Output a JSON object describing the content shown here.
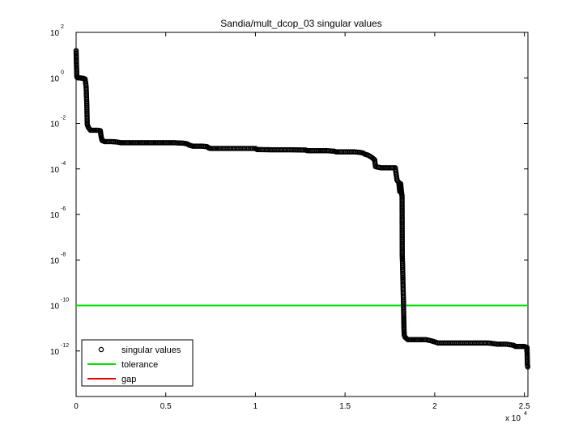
{
  "chart_data": {
    "type": "scatter",
    "title": "Sandia/mult_dcop_03 singular values",
    "xlabel": "",
    "ylabel": "",
    "x_multiplier_label": "x 10",
    "x_multiplier_exp": "4",
    "xlim": [
      0,
      25200
    ],
    "ylim_log10": [
      -14,
      2
    ],
    "y_scale": "log",
    "grid": false,
    "legend_position": "bottom-left",
    "x_ticks": [
      {
        "value": 0,
        "label": "0"
      },
      {
        "value": 5000,
        "label": "0.5"
      },
      {
        "value": 10000,
        "label": "1"
      },
      {
        "value": 15000,
        "label": "1.5"
      },
      {
        "value": 20000,
        "label": "2"
      },
      {
        "value": 25000,
        "label": "2.5"
      }
    ],
    "y_ticks": [
      {
        "exp": 2,
        "base": "10",
        "sup": "2"
      },
      {
        "exp": 0,
        "base": "10",
        "sup": "0"
      },
      {
        "exp": -2,
        "base": "10",
        "sup": "-2"
      },
      {
        "exp": -4,
        "base": "10",
        "sup": "-4"
      },
      {
        "exp": -6,
        "base": "10",
        "sup": "-6"
      },
      {
        "exp": -8,
        "base": "10",
        "sup": "-8"
      },
      {
        "exp": -10,
        "base": "10",
        "sup": "-10"
      },
      {
        "exp": -12,
        "base": "10",
        "sup": "-12"
      }
    ],
    "legend": [
      {
        "key": "singular",
        "label": "singular values",
        "symbol": "circle",
        "color": "#000000"
      },
      {
        "key": "tolerance",
        "label": "tolerance",
        "symbol": "line",
        "color": "#00e000"
      },
      {
        "key": "gap",
        "label": "gap",
        "symbol": "line",
        "color": "#e00000"
      }
    ],
    "series": [
      {
        "name": "singular values",
        "color": "#000000",
        "marker": "circle",
        "points_log10": [
          [
            0,
            1.2
          ],
          [
            20,
            0.55
          ],
          [
            40,
            0.05
          ],
          [
            60,
            0.02
          ],
          [
            100,
            0.0
          ],
          [
            200,
            0.0
          ],
          [
            300,
            -0.01
          ],
          [
            400,
            -0.02
          ],
          [
            500,
            -0.05
          ],
          [
            560,
            -0.4
          ],
          [
            600,
            -1.25
          ],
          [
            620,
            -2.05
          ],
          [
            700,
            -2.2
          ],
          [
            800,
            -2.3
          ],
          [
            1000,
            -2.3
          ],
          [
            1200,
            -2.3
          ],
          [
            1350,
            -2.32
          ],
          [
            1400,
            -2.6
          ],
          [
            1450,
            -2.75
          ],
          [
            1600,
            -2.8
          ],
          [
            2000,
            -2.8
          ],
          [
            2300,
            -2.82
          ],
          [
            2500,
            -2.85
          ],
          [
            3000,
            -2.85
          ],
          [
            3500,
            -2.85
          ],
          [
            4000,
            -2.85
          ],
          [
            4500,
            -2.85
          ],
          [
            5000,
            -2.85
          ],
          [
            5500,
            -2.85
          ],
          [
            6000,
            -2.87
          ],
          [
            6200,
            -2.9
          ],
          [
            6300,
            -2.95
          ],
          [
            6500,
            -3.0
          ],
          [
            7000,
            -3.0
          ],
          [
            7300,
            -3.02
          ],
          [
            7400,
            -3.08
          ],
          [
            7500,
            -3.1
          ],
          [
            8000,
            -3.1
          ],
          [
            9000,
            -3.1
          ],
          [
            10000,
            -3.1
          ],
          [
            10100,
            -3.15
          ],
          [
            11000,
            -3.16
          ],
          [
            12000,
            -3.16
          ],
          [
            12800,
            -3.17
          ],
          [
            12900,
            -3.2
          ],
          [
            13500,
            -3.2
          ],
          [
            14000,
            -3.2
          ],
          [
            14400,
            -3.22
          ],
          [
            14500,
            -3.25
          ],
          [
            15500,
            -3.25
          ],
          [
            15800,
            -3.27
          ],
          [
            16000,
            -3.3
          ],
          [
            16100,
            -3.35
          ],
          [
            16300,
            -3.4
          ],
          [
            16500,
            -3.5
          ],
          [
            16650,
            -3.6
          ],
          [
            16700,
            -3.9
          ],
          [
            17000,
            -3.95
          ],
          [
            17500,
            -3.95
          ],
          [
            17800,
            -3.95
          ],
          [
            17900,
            -4.5
          ],
          [
            18000,
            -4.6
          ],
          [
            18050,
            -5.0
          ],
          [
            18100,
            -4.65
          ],
          [
            18150,
            -5.05
          ],
          [
            18180,
            -5.2
          ],
          [
            18190,
            -7.8
          ],
          [
            18200,
            -8.0
          ],
          [
            18210,
            -8.3
          ],
          [
            18220,
            -8.6
          ],
          [
            18230,
            -9.0
          ],
          [
            18240,
            -9.3
          ],
          [
            18250,
            -9.6
          ],
          [
            18260,
            -9.9
          ],
          [
            18270,
            -10.4
          ],
          [
            18280,
            -10.8
          ],
          [
            18290,
            -11.1
          ],
          [
            18300,
            -11.3
          ],
          [
            18350,
            -11.4
          ],
          [
            18500,
            -11.5
          ],
          [
            19000,
            -11.5
          ],
          [
            19500,
            -11.5
          ],
          [
            19800,
            -11.55
          ],
          [
            20000,
            -11.6
          ],
          [
            20200,
            -11.65
          ],
          [
            21000,
            -11.65
          ],
          [
            22000,
            -11.65
          ],
          [
            23000,
            -11.65
          ],
          [
            23500,
            -11.7
          ],
          [
            24000,
            -11.7
          ],
          [
            24400,
            -11.75
          ],
          [
            24500,
            -11.8
          ],
          [
            25000,
            -11.8
          ],
          [
            25150,
            -11.85
          ],
          [
            25160,
            -12.3
          ],
          [
            25170,
            -12.6
          ],
          [
            25190,
            -12.7
          ]
        ]
      },
      {
        "name": "tolerance",
        "color": "#00e000",
        "y_log10": -10.0
      },
      {
        "name": "gap",
        "color": "#e00000",
        "x": 18270,
        "y_log10_range": [
          -10.4,
          -11.0
        ]
      }
    ]
  }
}
